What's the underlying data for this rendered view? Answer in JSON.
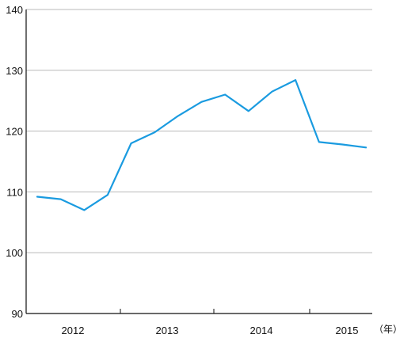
{
  "chart_data": {
    "type": "line",
    "title": "",
    "xlabel": "",
    "ylabel": "",
    "x_unit_label": "（年）",
    "ylim": [
      90,
      140
    ],
    "y_ticks": [
      90,
      100,
      110,
      120,
      130,
      140
    ],
    "grid": "horizontal",
    "year_labels": [
      "2012",
      "2013",
      "2014",
      "2015"
    ],
    "line_color": "#1a9be0",
    "series": [
      {
        "values": [
          109.2,
          108.8,
          107.0,
          109.5,
          118.0,
          119.8,
          122.5,
          124.8,
          126.0,
          123.3,
          126.5,
          128.4,
          118.2,
          117.8,
          117.3
        ]
      }
    ]
  }
}
